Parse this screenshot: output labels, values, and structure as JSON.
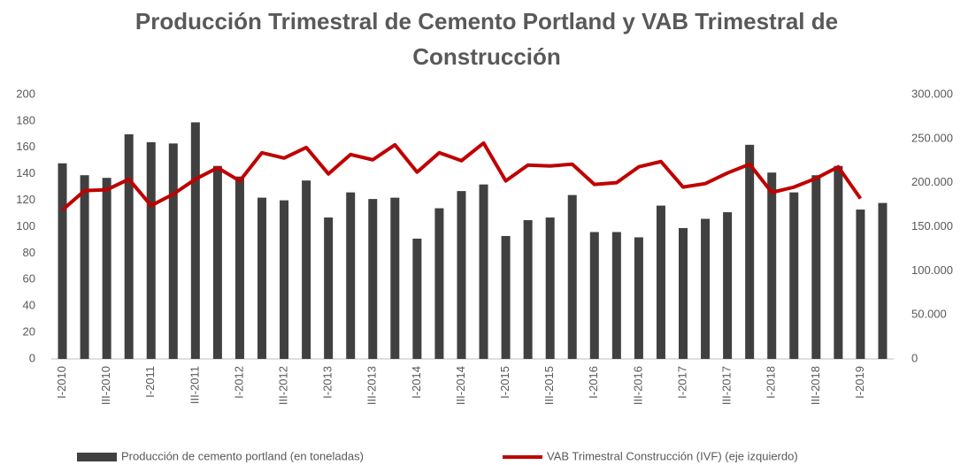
{
  "chart_data": {
    "type": "bar_line",
    "title": "Producción Trimestral de Cemento Portland y VAB Trimestral de Construcción",
    "categories": [
      "I-2010",
      null,
      "III-2010",
      null,
      "I-2011",
      null,
      "III-2011",
      null,
      "I-2012",
      null,
      "III-2012",
      null,
      "I-2013",
      null,
      "III-2013",
      null,
      "I-2014",
      null,
      "III-2014",
      null,
      "I-2015",
      null,
      "III-2015",
      null,
      "I-2016",
      null,
      "III-2016",
      null,
      "I-2017",
      null,
      "III-2017",
      null,
      "I-2018",
      null,
      "III-2018",
      null,
      "I-2019",
      null
    ],
    "series": [
      {
        "name": "Producción de cemento portland (en toneladas)",
        "color": "#404040",
        "type": "bar",
        "values": [
          148,
          139,
          137,
          170,
          164,
          163,
          179,
          146,
          138,
          122,
          120,
          135,
          107,
          126,
          121,
          122,
          91,
          114,
          127,
          132,
          93,
          105,
          107,
          124,
          96,
          96,
          92,
          116,
          99,
          106,
          111,
          162,
          141,
          126,
          139,
          146,
          113,
          118
        ]
      },
      {
        "name": "VAB Trimestral Construcción (IVF) (eje izquierdo)",
        "color": "#c00000",
        "type": "line",
        "axis": "y2",
        "values": [
          169000,
          191000,
          192000,
          204000,
          174000,
          187000,
          204000,
          217000,
          202000,
          234000,
          228000,
          240000,
          210000,
          232000,
          226000,
          243000,
          212000,
          234000,
          225000,
          245000,
          202000,
          220000,
          219000,
          221000,
          198000,
          200000,
          218000,
          224000,
          195000,
          199000,
          211000,
          221000,
          189000,
          195000,
          205000,
          218000,
          182000,
          null
        ]
      }
    ],
    "ylim": [
      0,
      200
    ],
    "yticks": [
      0,
      20,
      40,
      60,
      80,
      100,
      120,
      140,
      160,
      180,
      200
    ],
    "y2lim": [
      0,
      300000
    ],
    "y2ticks": [
      0,
      {
        "value": 50000,
        "label": "50.000"
      },
      {
        "value": 100000,
        "label": "100.000"
      },
      {
        "value": 150000,
        "label": "150.000"
      },
      {
        "value": 200000,
        "label": "200.000"
      },
      {
        "value": 250000,
        "label": "250.000"
      },
      {
        "value": 300000,
        "label": "300.000"
      }
    ],
    "legend": "bottom"
  }
}
